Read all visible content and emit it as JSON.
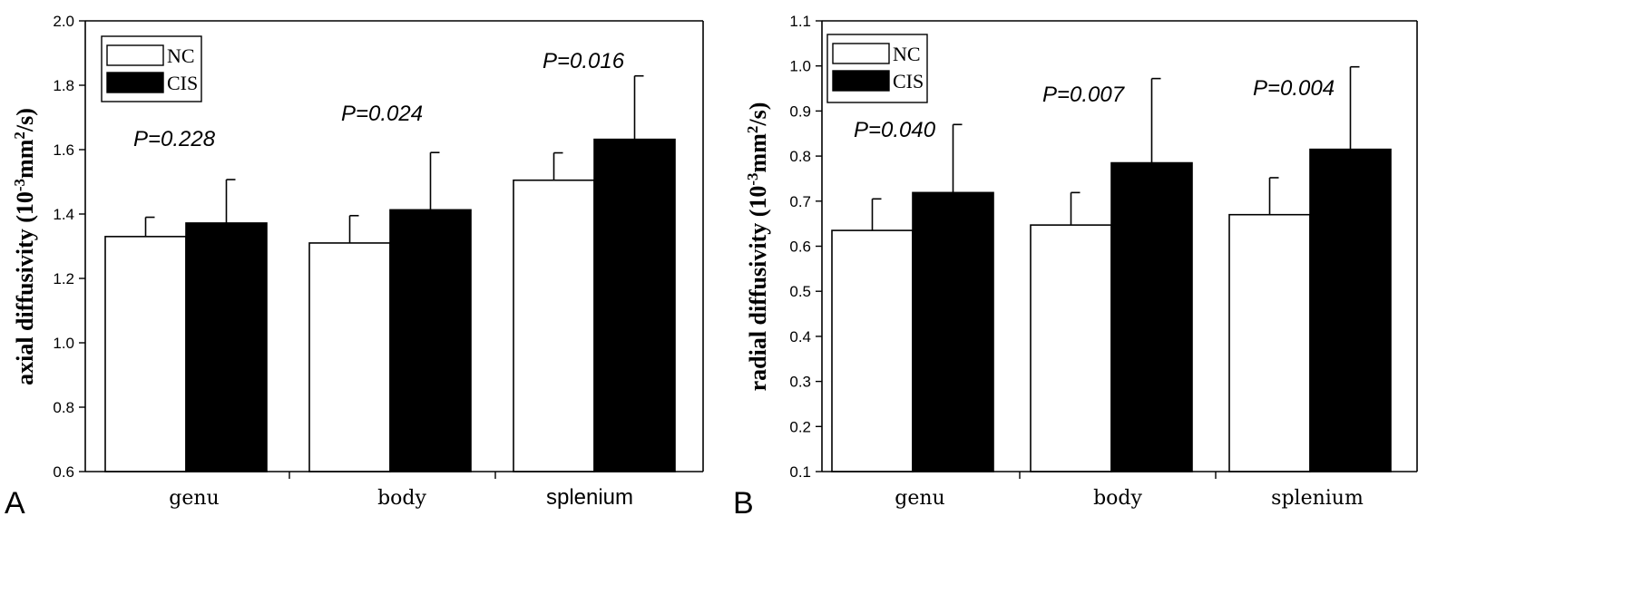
{
  "chart_data": [
    {
      "type": "bar",
      "panel_label": "A",
      "ylabel": "axial diffusivity (10-3mm2/s)",
      "ylabel_parts": {
        "main": "axial diffusivity (10",
        "exp1": "-3",
        "mid": "mm",
        "exp2": "2",
        "tail": "/s)"
      },
      "categories": [
        "genu",
        "body",
        "splenium"
      ],
      "ylim": [
        0.6,
        2.0
      ],
      "yticks": [
        0.6,
        0.8,
        1.0,
        1.2,
        1.4,
        1.6,
        1.8,
        2.0
      ],
      "ytick_labels": [
        "0.6",
        "0.8",
        "1.0",
        "1.2",
        "1.4",
        "1.6",
        "1.8",
        "2.0"
      ],
      "series": [
        {
          "name": "NC",
          "fill": "#ffffff",
          "values": [
            1.33,
            1.31,
            1.505
          ],
          "errors": [
            0.06,
            0.085,
            0.085
          ]
        },
        {
          "name": "CIS",
          "fill": "#000000",
          "values": [
            1.372,
            1.413,
            1.632
          ],
          "errors": [
            0.135,
            0.178,
            0.197
          ]
        }
      ],
      "annotations": [
        "P=0.228",
        "P=0.024",
        "P=0.016"
      ],
      "legend_position": "top-left",
      "grid": false
    },
    {
      "type": "bar",
      "panel_label": "B",
      "ylabel": "radial diffusivity (10-3mm2/s)",
      "ylabel_parts": {
        "main": "radial diffusivity (10",
        "exp1": "-3",
        "mid": "mm",
        "exp2": "2",
        "tail": "/s)"
      },
      "categories": [
        "genu",
        "body",
        "splenium"
      ],
      "ylim": [
        0.1,
        1.1
      ],
      "yticks": [
        0.1,
        0.2,
        0.3,
        0.4,
        0.5,
        0.6,
        0.7,
        0.8,
        0.9,
        1.0,
        1.1
      ],
      "ytick_labels": [
        "0.1",
        "0.2",
        "0.3",
        "0.4",
        "0.5",
        "0.6",
        "0.7",
        "0.8",
        "0.9",
        "1.0",
        "1.1"
      ],
      "series": [
        {
          "name": "NC",
          "fill": "#ffffff",
          "values": [
            0.635,
            0.647,
            0.67
          ],
          "errors": [
            0.07,
            0.072,
            0.082
          ]
        },
        {
          "name": "CIS",
          "fill": "#000000",
          "values": [
            0.719,
            0.785,
            0.815
          ],
          "errors": [
            0.151,
            0.187,
            0.183
          ]
        }
      ],
      "annotations": [
        "P=0.040",
        "P=0.007",
        "P=0.004"
      ],
      "legend_position": "top-left",
      "grid": false
    }
  ]
}
